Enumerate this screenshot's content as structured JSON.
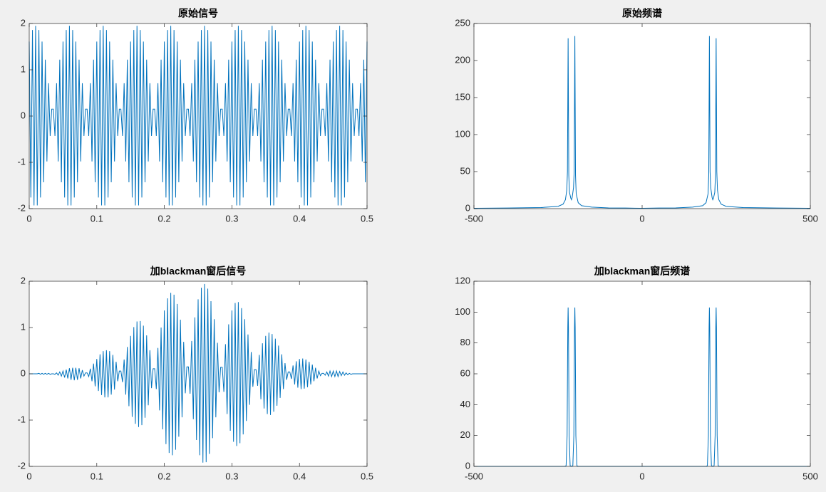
{
  "chart_data": [
    {
      "type": "line",
      "title": "原始信号",
      "color": "#0072bd",
      "xlim": [
        0,
        0.5
      ],
      "ylim": [
        -2,
        2
      ],
      "xticks": [
        0,
        0.1,
        0.2,
        0.3,
        0.4,
        0.5
      ],
      "yticks": [
        -2,
        -1,
        0,
        1,
        2
      ],
      "x": [
        0,
        0.0024,
        0.0048,
        0.0071,
        0.0095,
        0.0119,
        0.0143,
        0.0167,
        0.019,
        0.0214,
        0.0238,
        0.0262,
        0.0286,
        0.031,
        0.0333,
        0.0357,
        0.0381,
        0.0405,
        0.0429,
        0.0452,
        0.0476,
        0.05,
        0.0524,
        0.0548,
        0.0571,
        0.0595,
        0.0619,
        0.0643,
        0.0667,
        0.069,
        0.0714,
        0.0738,
        0.0762,
        0.0786,
        0.081,
        0.0833,
        0.0857,
        0.0881,
        0.0905,
        0.0929,
        0.0952,
        0.0976,
        0.1,
        0.1024,
        0.1048,
        0.1071,
        0.1095,
        0.1119,
        0.1143,
        0.1167,
        0.119,
        0.1214,
        0.1238,
        0.1262,
        0.1286,
        0.131,
        0.1333,
        0.1357,
        0.1381,
        0.1405,
        0.1429,
        0.1452,
        0.1476,
        0.15,
        0.1524,
        0.1548,
        0.1571,
        0.1595,
        0.1619,
        0.1643,
        0.1667,
        0.169,
        0.1714,
        0.1738,
        0.1762,
        0.1786,
        0.181,
        0.1833,
        0.1857,
        0.1881,
        0.1905,
        0.1929,
        0.1952,
        0.1976,
        0.2,
        0.2024,
        0.2048,
        0.2071,
        0.2095,
        0.2119,
        0.2143,
        0.2167,
        0.219,
        0.2214,
        0.2238,
        0.2262,
        0.2286,
        0.231,
        0.2333,
        0.2357,
        0.2381,
        0.2405,
        0.2429,
        0.2452,
        0.2476,
        0.25,
        0.2524,
        0.2548,
        0.2571,
        0.2595,
        0.2619,
        0.2643,
        0.2667,
        0.269,
        0.2714,
        0.2738,
        0.2762,
        0.2786,
        0.281,
        0.2833,
        0.2857,
        0.2881,
        0.2905,
        0.2929,
        0.2952,
        0.2976,
        0.3,
        0.3024,
        0.3048,
        0.3071,
        0.3095,
        0.3119,
        0.3143,
        0.3167,
        0.319,
        0.3214,
        0.3238,
        0.3262,
        0.3286,
        0.331,
        0.3333,
        0.3357,
        0.3381,
        0.3405,
        0.3429,
        0.3452,
        0.3476,
        0.35,
        0.3524,
        0.3548,
        0.3571,
        0.3595,
        0.3619,
        0.3643,
        0.3667,
        0.369,
        0.3714,
        0.3738,
        0.3762,
        0.3786,
        0.381,
        0.3833,
        0.3857,
        0.3881,
        0.3905,
        0.3929,
        0.3952,
        0.3976,
        0.4,
        0.4024,
        0.4048,
        0.4071,
        0.4095,
        0.4119,
        0.4143,
        0.4167,
        0.419,
        0.4214,
        0.4238,
        0.4262,
        0.4286,
        0.431,
        0.4333,
        0.4357,
        0.4381,
        0.4405,
        0.4429,
        0.4452,
        0.4476,
        0.45,
        0.4524,
        0.4548,
        0.4571,
        0.4595,
        0.4619,
        0.4643,
        0.4667,
        0.469,
        0.4714,
        0.4738,
        0.4762,
        0.4786,
        0.481,
        0.4833,
        0.4857,
        0.4881,
        0.4905,
        0.4929,
        0.4952,
        0.4976,
        0.5
      ],
      "values": [
        1.61,
        -1.76,
        1.86,
        -1.93,
        1.95,
        -1.93,
        1.86,
        -1.76,
        1.61,
        -1.43,
        1.22,
        -0.98,
        0.71,
        -0.43,
        0.15,
        0.15,
        -0.43,
        0.71,
        -0.98,
        1.22,
        -1.43,
        1.61,
        -1.76,
        1.86,
        -1.93,
        1.95,
        -1.93,
        1.86,
        -1.76,
        1.61,
        -1.43,
        1.22,
        -0.98,
        0.71,
        -0.43,
        0.15,
        0.15,
        -0.43,
        0.71,
        -0.98,
        1.22,
        -1.43,
        1.61,
        -1.76,
        1.86,
        -1.93,
        1.95,
        -1.93,
        1.86,
        -1.76,
        1.61,
        -1.43,
        1.22,
        -0.98,
        0.71,
        -0.43,
        0.15,
        0.15,
        -0.43,
        0.71,
        -0.98,
        1.22,
        -1.43,
        1.61,
        -1.76,
        1.86,
        -1.93,
        1.95,
        -1.93,
        1.86,
        -1.76,
        1.61,
        -1.43,
        1.22,
        -0.98,
        0.71,
        -0.43,
        0.15,
        0.15,
        -0.43,
        0.71,
        -0.98,
        1.22,
        -1.43,
        1.61,
        -1.76,
        1.86,
        -1.93,
        1.95,
        -1.93,
        1.86,
        -1.76,
        1.61,
        -1.43,
        1.22,
        -0.98,
        0.71,
        -0.43,
        0.15,
        0.15,
        -0.43,
        0.71,
        -0.98,
        1.22,
        -1.43,
        1.61,
        -1.76,
        1.86,
        -1.93,
        1.95,
        -1.93,
        1.86,
        -1.76,
        1.61,
        -1.43,
        1.22,
        -0.98,
        0.71,
        -0.43,
        0.15,
        0.15,
        -0.43,
        0.71,
        -0.98,
        1.22,
        -1.43,
        1.61,
        -1.76,
        1.86,
        -1.93,
        1.95,
        -1.93,
        1.86,
        -1.76,
        1.61,
        -1.43,
        1.22,
        -0.98,
        0.71,
        -0.43,
        0.15,
        0.15,
        -0.43,
        0.71,
        -0.98,
        1.22,
        -1.43,
        1.61,
        -1.76,
        1.86,
        -1.93,
        1.95,
        -1.93,
        1.86,
        -1.76,
        1.61,
        -1.43,
        1.22,
        -0.98,
        0.71,
        -0.43,
        0.15,
        0.15,
        -0.43,
        0.71,
        -0.98,
        1.22,
        -1.43,
        1.61,
        -1.76,
        1.86,
        -1.93,
        1.95,
        -1.93,
        1.86,
        -1.76,
        1.61,
        -1.43,
        1.22,
        -0.98,
        0.71,
        -0.43,
        0.15,
        0.15,
        -0.43,
        0.71,
        -0.98,
        1.22,
        -1.43,
        1.61,
        -1.76,
        1.86,
        -1.93,
        1.95,
        -1.93,
        1.86,
        -1.76,
        1.61,
        -1.43,
        1.22,
        -0.98,
        0.71,
        -0.43,
        0.15,
        0.15,
        -0.43,
        0.71,
        -0.98,
        1.22,
        -1.43,
        1.61
      ]
    },
    {
      "type": "line",
      "title": "原始频谱",
      "color": "#0072bd",
      "xlim": [
        -500,
        500
      ],
      "ylim": [
        0,
        250
      ],
      "xticks": [
        -500,
        0,
        500
      ],
      "yticks": [
        0,
        50,
        100,
        150,
        200,
        250
      ],
      "x": [
        -500,
        -400,
        -300,
        -250,
        -235,
        -228,
        -224,
        -222,
        -220,
        -218,
        -216,
        -212,
        -210,
        -208,
        -204,
        -202,
        -200,
        -198,
        -196,
        -190,
        -180,
        -150,
        -100,
        -50,
        0,
        50,
        100,
        150,
        180,
        190,
        196,
        198,
        200,
        202,
        204,
        208,
        210,
        212,
        216,
        218,
        220,
        222,
        224,
        228,
        235,
        250,
        300,
        400,
        500
      ],
      "values": [
        0.5,
        0.8,
        1.5,
        3,
        6,
        12,
        25,
        50,
        230,
        45,
        22,
        14,
        12,
        15,
        28,
        50,
        233,
        45,
        20,
        8,
        4,
        2,
        1,
        0.8,
        0.5,
        0.8,
        1,
        2,
        4,
        8,
        20,
        45,
        233,
        50,
        28,
        15,
        12,
        14,
        22,
        45,
        230,
        50,
        25,
        12,
        6,
        3,
        1.5,
        0.8,
        0.5
      ]
    },
    {
      "type": "line",
      "title": "加blackman窗后信号",
      "color": "#0072bd",
      "xlim": [
        0,
        0.5
      ],
      "ylim": [
        -2,
        2
      ],
      "xticks": [
        0,
        0.1,
        0.2,
        0.3,
        0.4,
        0.5
      ],
      "yticks": [
        -2,
        -1,
        0,
        1,
        2
      ],
      "x": [
        0,
        0.0024,
        0.0048,
        0.0071,
        0.0095,
        0.0119,
        0.0143,
        0.0167,
        0.019,
        0.0214,
        0.0238,
        0.0262,
        0.0286,
        0.031,
        0.0333,
        0.0357,
        0.0381,
        0.0405,
        0.0429,
        0.0452,
        0.0476,
        0.05,
        0.0524,
        0.0548,
        0.0571,
        0.0595,
        0.0619,
        0.0643,
        0.0667,
        0.069,
        0.0714,
        0.0738,
        0.0762,
        0.0786,
        0.081,
        0.0833,
        0.0857,
        0.0881,
        0.0905,
        0.0929,
        0.0952,
        0.0976,
        0.1,
        0.1024,
        0.1048,
        0.1071,
        0.1095,
        0.1119,
        0.1143,
        0.1167,
        0.119,
        0.1214,
        0.1238,
        0.1262,
        0.1286,
        0.131,
        0.1333,
        0.1357,
        0.1381,
        0.1405,
        0.1429,
        0.1452,
        0.1476,
        0.15,
        0.1524,
        0.1548,
        0.1571,
        0.1595,
        0.1619,
        0.1643,
        0.1667,
        0.169,
        0.1714,
        0.1738,
        0.1762,
        0.1786,
        0.181,
        0.1833,
        0.1857,
        0.1881,
        0.1905,
        0.1929,
        0.1952,
        0.1976,
        0.2,
        0.2024,
        0.2048,
        0.2071,
        0.2095,
        0.2119,
        0.2143,
        0.2167,
        0.219,
        0.2214,
        0.2238,
        0.2262,
        0.2286,
        0.231,
        0.2333,
        0.2357,
        0.2381,
        0.2405,
        0.2429,
        0.2452,
        0.2476,
        0.25,
        0.2524,
        0.2548,
        0.2571,
        0.2595,
        0.2619,
        0.2643,
        0.2667,
        0.269,
        0.2714,
        0.2738,
        0.2762,
        0.2786,
        0.281,
        0.2833,
        0.2857,
        0.2881,
        0.2905,
        0.2929,
        0.2952,
        0.2976,
        0.3,
        0.3024,
        0.3048,
        0.3071,
        0.3095,
        0.3119,
        0.3143,
        0.3167,
        0.319,
        0.3214,
        0.3238,
        0.3262,
        0.3286,
        0.331,
        0.3333,
        0.3357,
        0.3381,
        0.3405,
        0.3429,
        0.3452,
        0.3476,
        0.35,
        0.3524,
        0.3548,
        0.3571,
        0.3595,
        0.3619,
        0.3643,
        0.3667,
        0.369,
        0.3714,
        0.3738,
        0.3762,
        0.3786,
        0.381,
        0.3833,
        0.3857,
        0.3881,
        0.3905,
        0.3929,
        0.3952,
        0.3976,
        0.4,
        0.4024,
        0.4048,
        0.4071,
        0.4095,
        0.4119,
        0.4143,
        0.4167,
        0.419,
        0.4214,
        0.4238,
        0.4262,
        0.4286,
        0.431,
        0.4333,
        0.4357,
        0.4381,
        0.4405,
        0.4429,
        0.4452,
        0.4476,
        0.45,
        0.4524,
        0.4548,
        0.4571,
        0.4595,
        0.4619,
        0.4643,
        0.4667,
        0.469,
        0.4714,
        0.4738,
        0.4762,
        0.4786,
        0.481,
        0.4833,
        0.4857,
        0.4881,
        0.4905,
        0.4929,
        0.4952,
        0.4976,
        0.5
      ],
      "values": [
        0,
        0,
        0,
        0,
        0,
        0,
        0.01,
        -0.01,
        0.01,
        -0.01,
        0.01,
        -0.01,
        0.01,
        -0.01,
        0,
        0,
        -0.01,
        0.02,
        -0.03,
        0.04,
        -0.05,
        0.06,
        -0.08,
        0.09,
        -0.1,
        0.12,
        -0.13,
        0.13,
        -0.14,
        0.13,
        -0.13,
        0.12,
        -0.1,
        0.08,
        -0.05,
        0.02,
        0.02,
        -0.06,
        0.11,
        -0.16,
        0.22,
        -0.27,
        0.32,
        -0.37,
        0.42,
        -0.46,
        0.49,
        -0.51,
        0.51,
        -0.51,
        0.49,
        -0.45,
        0.41,
        -0.34,
        0.26,
        -0.16,
        0.06,
        0.06,
        -0.18,
        0.31,
        -0.45,
        0.58,
        -0.7,
        0.82,
        -0.93,
        1.01,
        -1.08,
        1.13,
        -1.15,
        1.14,
        -1.11,
        1.04,
        -0.95,
        0.83,
        -0.68,
        0.51,
        -0.31,
        0.11,
        0.11,
        -0.33,
        0.56,
        -0.79,
        1,
        -1.2,
        1.37,
        -1.52,
        1.63,
        -1.71,
        1.75,
        -1.76,
        1.71,
        -1.64,
        1.51,
        -1.36,
        1.17,
        -0.94,
        0.69,
        -0.42,
        0.15,
        0.15,
        -0.43,
        0.71,
        -0.98,
        1.22,
        -1.43,
        1.61,
        -1.76,
        1.86,
        -1.92,
        1.94,
        -1.91,
        1.84,
        -1.73,
        1.57,
        -1.39,
        1.18,
        -0.94,
        0.67,
        -0.4,
        0.14,
        0.14,
        -0.39,
        0.64,
        -0.87,
        1.07,
        -1.23,
        1.37,
        -1.47,
        1.53,
        -1.56,
        1.55,
        -1.5,
        1.42,
        -1.31,
        1.18,
        -1.02,
        0.85,
        -0.67,
        0.47,
        -0.28,
        0.09,
        0.09,
        -0.26,
        0.41,
        -0.55,
        0.66,
        -0.75,
        0.82,
        -0.87,
        0.89,
        -0.89,
        0.86,
        -0.82,
        0.76,
        -0.69,
        0.61,
        -0.52,
        0.42,
        -0.33,
        0.23,
        -0.13,
        0.04,
        0.04,
        -0.11,
        0.18,
        -0.23,
        0.27,
        -0.3,
        0.32,
        -0.33,
        0.33,
        -0.32,
        0.31,
        -0.29,
        0.26,
        -0.23,
        0.2,
        -0.16,
        0.13,
        -0.1,
        0.06,
        -0.04,
        0.01,
        0.01,
        -0.03,
        0.04,
        -0.05,
        0.06,
        -0.06,
        0.06,
        -0.06,
        0.06,
        -0.06,
        0.05,
        -0.04,
        0.04,
        -0.03,
        0.02,
        -0.02,
        0.01,
        -0.01,
        0,
        0,
        0,
        0,
        0,
        0,
        0,
        0,
        0,
        0
      ]
    },
    {
      "type": "line",
      "title": "加blackman窗后频谱",
      "color": "#0072bd",
      "xlim": [
        -500,
        500
      ],
      "ylim": [
        0,
        120
      ],
      "xticks": [
        -500,
        0,
        500
      ],
      "yticks": [
        0,
        20,
        40,
        60,
        80,
        100,
        120
      ],
      "x": [
        -500,
        -230,
        -226,
        -223,
        -221,
        -220,
        -219,
        -217,
        -214,
        -210,
        -206,
        -203,
        -201,
        -200,
        -199,
        -197,
        -194,
        -190,
        0,
        190,
        194,
        197,
        199,
        200,
        201,
        203,
        206,
        210,
        214,
        217,
        219,
        220,
        221,
        223,
        226,
        230,
        500
      ],
      "values": [
        0,
        0,
        0.5,
        20,
        90,
        103,
        90,
        20,
        0.5,
        0,
        0.5,
        20,
        90,
        103,
        90,
        20,
        0.5,
        0,
        0,
        0,
        0.5,
        20,
        90,
        103,
        90,
        20,
        0.5,
        0,
        0.5,
        20,
        90,
        103,
        90,
        20,
        0.5,
        0,
        0
      ]
    }
  ]
}
